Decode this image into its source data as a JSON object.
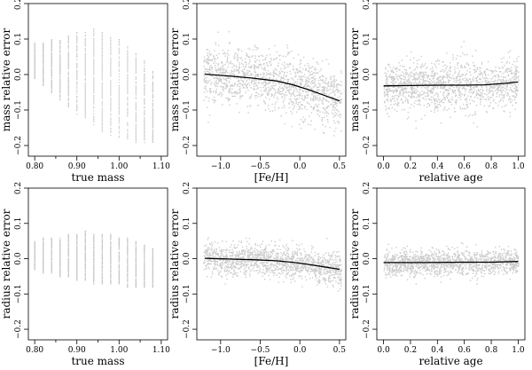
{
  "chart_data": [
    {
      "type": "scatter",
      "xlabel": "true mass",
      "ylabel": "mass relative error",
      "xlim": [
        0.785,
        1.115
      ],
      "ylim": [
        -0.23,
        0.2
      ],
      "xticks": [
        "0.80",
        "0.90",
        "1.00",
        "1.10"
      ],
      "xtick_values": [
        0.8,
        0.9,
        1.0,
        1.1
      ],
      "minor_xticks": [
        0.85,
        0.95,
        1.05
      ],
      "yticks": [
        "−0.2",
        "−0.1",
        "0.0",
        "0.1",
        "0.2"
      ],
      "ytick_values": [
        -0.2,
        -0.1,
        0.0,
        0.1,
        0.2
      ],
      "scatter_style": "vertical-columns",
      "point_color": "#c8c8c8",
      "columns": [
        {
          "x": 0.8,
          "ymin": -0.01,
          "ymax": 0.09
        },
        {
          "x": 0.82,
          "ymin": -0.03,
          "ymax": 0.09
        },
        {
          "x": 0.84,
          "ymin": -0.05,
          "ymax": 0.1
        },
        {
          "x": 0.86,
          "ymin": -0.07,
          "ymax": 0.1
        },
        {
          "x": 0.88,
          "ymin": -0.09,
          "ymax": 0.11
        },
        {
          "x": 0.9,
          "ymin": -0.11,
          "ymax": 0.12
        },
        {
          "x": 0.92,
          "ymin": -0.12,
          "ymax": 0.12
        },
        {
          "x": 0.94,
          "ymin": -0.14,
          "ymax": 0.13
        },
        {
          "x": 0.96,
          "ymin": -0.16,
          "ymax": 0.12
        },
        {
          "x": 0.98,
          "ymin": -0.17,
          "ymax": 0.11
        },
        {
          "x": 1.0,
          "ymin": -0.18,
          "ymax": 0.1
        },
        {
          "x": 1.02,
          "ymin": -0.18,
          "ymax": 0.08
        },
        {
          "x": 1.04,
          "ymin": -0.19,
          "ymax": 0.06
        },
        {
          "x": 1.06,
          "ymin": -0.19,
          "ymax": 0.04
        },
        {
          "x": 1.08,
          "ymin": -0.19,
          "ymax": 0.01
        }
      ],
      "trend": []
    },
    {
      "type": "scatter",
      "xlabel": "[Fe/H]",
      "ylabel": "mass relative error",
      "xlim": [
        -1.3,
        0.58
      ],
      "ylim": [
        -0.23,
        0.2
      ],
      "xticks": [
        "−1.0",
        "−0.5",
        "0.0",
        "0.5"
      ],
      "xtick_values": [
        -1.0,
        -0.5,
        0.0,
        0.5
      ],
      "minor_xticks": [],
      "yticks": [
        "−0.2",
        "−0.1",
        "0.0",
        "0.1",
        "0.2"
      ],
      "ytick_values": [
        -0.2,
        -0.1,
        0.0,
        0.1,
        0.2
      ],
      "scatter_style": "cloud",
      "point_color": "#cccccc",
      "cloud": {
        "xmin": -1.22,
        "xmax": 0.52,
        "spread": 0.04,
        "ymin": -0.2,
        "ymax": 0.13
      },
      "trend": [
        [
          -1.2,
          0.001
        ],
        [
          -0.9,
          -0.004
        ],
        [
          -0.6,
          -0.01
        ],
        [
          -0.3,
          -0.018
        ],
        [
          -0.1,
          -0.028
        ],
        [
          0.1,
          -0.042
        ],
        [
          0.3,
          -0.058
        ],
        [
          0.5,
          -0.074
        ]
      ]
    },
    {
      "type": "scatter",
      "xlabel": "relative age",
      "ylabel": "mass relative error",
      "xlim": [
        -0.05,
        1.05
      ],
      "ylim": [
        -0.23,
        0.2
      ],
      "xticks": [
        "0.0",
        "0.2",
        "0.4",
        "0.6",
        "0.8",
        "1.0"
      ],
      "xtick_values": [
        0.0,
        0.2,
        0.4,
        0.6,
        0.8,
        1.0
      ],
      "minor_xticks": [],
      "yticks": [
        "−0.2",
        "−0.1",
        "0.0",
        "0.1",
        "0.2"
      ],
      "ytick_values": [
        -0.2,
        -0.1,
        0.0,
        0.1,
        0.2
      ],
      "scatter_style": "cloud",
      "point_color": "#cccccc",
      "cloud": {
        "xmin": 0.0,
        "xmax": 1.0,
        "spread": 0.035,
        "ymin": -0.16,
        "ymax": 0.12
      },
      "trend": [
        [
          0.0,
          -0.032
        ],
        [
          0.2,
          -0.031
        ],
        [
          0.4,
          -0.03
        ],
        [
          0.6,
          -0.03
        ],
        [
          0.75,
          -0.029
        ],
        [
          0.9,
          -0.025
        ],
        [
          1.0,
          -0.021
        ]
      ]
    },
    {
      "type": "scatter",
      "xlabel": "true mass",
      "ylabel": "radius relative error",
      "xlim": [
        0.785,
        1.115
      ],
      "ylim": [
        -0.23,
        0.2
      ],
      "xticks": [
        "0.80",
        "0.90",
        "1.00",
        "1.10"
      ],
      "xtick_values": [
        0.8,
        0.9,
        1.0,
        1.1
      ],
      "minor_xticks": [
        0.85,
        0.95,
        1.05
      ],
      "yticks": [
        "−0.2",
        "−0.1",
        "0.0",
        "0.1",
        "0.2"
      ],
      "ytick_values": [
        -0.2,
        -0.1,
        0.0,
        0.1,
        0.2
      ],
      "scatter_style": "vertical-columns",
      "point_color": "#c8c8c8",
      "columns": [
        {
          "x": 0.8,
          "ymin": -0.03,
          "ymax": 0.05
        },
        {
          "x": 0.82,
          "ymin": -0.04,
          "ymax": 0.06
        },
        {
          "x": 0.84,
          "ymin": -0.04,
          "ymax": 0.06
        },
        {
          "x": 0.86,
          "ymin": -0.05,
          "ymax": 0.06
        },
        {
          "x": 0.88,
          "ymin": -0.05,
          "ymax": 0.07
        },
        {
          "x": 0.9,
          "ymin": -0.06,
          "ymax": 0.07
        },
        {
          "x": 0.92,
          "ymin": -0.06,
          "ymax": 0.08
        },
        {
          "x": 0.94,
          "ymin": -0.07,
          "ymax": 0.07
        },
        {
          "x": 0.96,
          "ymin": -0.07,
          "ymax": 0.07
        },
        {
          "x": 0.98,
          "ymin": -0.07,
          "ymax": 0.07
        },
        {
          "x": 1.0,
          "ymin": -0.07,
          "ymax": 0.06
        },
        {
          "x": 1.02,
          "ymin": -0.08,
          "ymax": 0.06
        },
        {
          "x": 1.04,
          "ymin": -0.08,
          "ymax": 0.05
        },
        {
          "x": 1.06,
          "ymin": -0.08,
          "ymax": 0.04
        },
        {
          "x": 1.08,
          "ymin": -0.08,
          "ymax": 0.03
        }
      ],
      "trend": []
    },
    {
      "type": "scatter",
      "xlabel": "[Fe/H]",
      "ylabel": "radius relative error",
      "xlim": [
        -1.3,
        0.58
      ],
      "ylim": [
        -0.23,
        0.2
      ],
      "xticks": [
        "−1.0",
        "−0.5",
        "0.0",
        "0.5"
      ],
      "xtick_values": [
        -1.0,
        -0.5,
        0.0,
        0.5
      ],
      "minor_xticks": [],
      "yticks": [
        "−0.2",
        "−0.1",
        "0.0",
        "0.1",
        "0.2"
      ],
      "ytick_values": [
        -0.2,
        -0.1,
        0.0,
        0.1,
        0.2
      ],
      "scatter_style": "cloud",
      "point_color": "#cccccc",
      "cloud": {
        "xmin": -1.22,
        "xmax": 0.52,
        "spread": 0.022,
        "ymin": -0.1,
        "ymax": 0.07
      },
      "trend": [
        [
          -1.2,
          0.001
        ],
        [
          -0.9,
          -0.001
        ],
        [
          -0.6,
          -0.003
        ],
        [
          -0.3,
          -0.006
        ],
        [
          -0.1,
          -0.01
        ],
        [
          0.1,
          -0.016
        ],
        [
          0.3,
          -0.023
        ],
        [
          0.5,
          -0.03
        ]
      ]
    },
    {
      "type": "scatter",
      "xlabel": "relative age",
      "ylabel": "radius relative error",
      "xlim": [
        -0.05,
        1.05
      ],
      "ylim": [
        -0.23,
        0.2
      ],
      "xticks": [
        "0.0",
        "0.2",
        "0.4",
        "0.6",
        "0.8",
        "1.0"
      ],
      "xtick_values": [
        0.0,
        0.2,
        0.4,
        0.6,
        0.8,
        1.0
      ],
      "minor_xticks": [],
      "yticks": [
        "−0.2",
        "−0.1",
        "0.0",
        "0.1",
        "0.2"
      ],
      "ytick_values": [
        -0.2,
        -0.1,
        0.0,
        0.1,
        0.2
      ],
      "scatter_style": "cloud",
      "point_color": "#cccccc",
      "cloud": {
        "xmin": 0.0,
        "xmax": 1.0,
        "spread": 0.018,
        "ymin": -0.07,
        "ymax": 0.05
      },
      "trend": [
        [
          0.0,
          -0.011
        ],
        [
          0.3,
          -0.011
        ],
        [
          0.6,
          -0.01
        ],
        [
          0.8,
          -0.01
        ],
        [
          1.0,
          -0.008
        ]
      ]
    }
  ]
}
